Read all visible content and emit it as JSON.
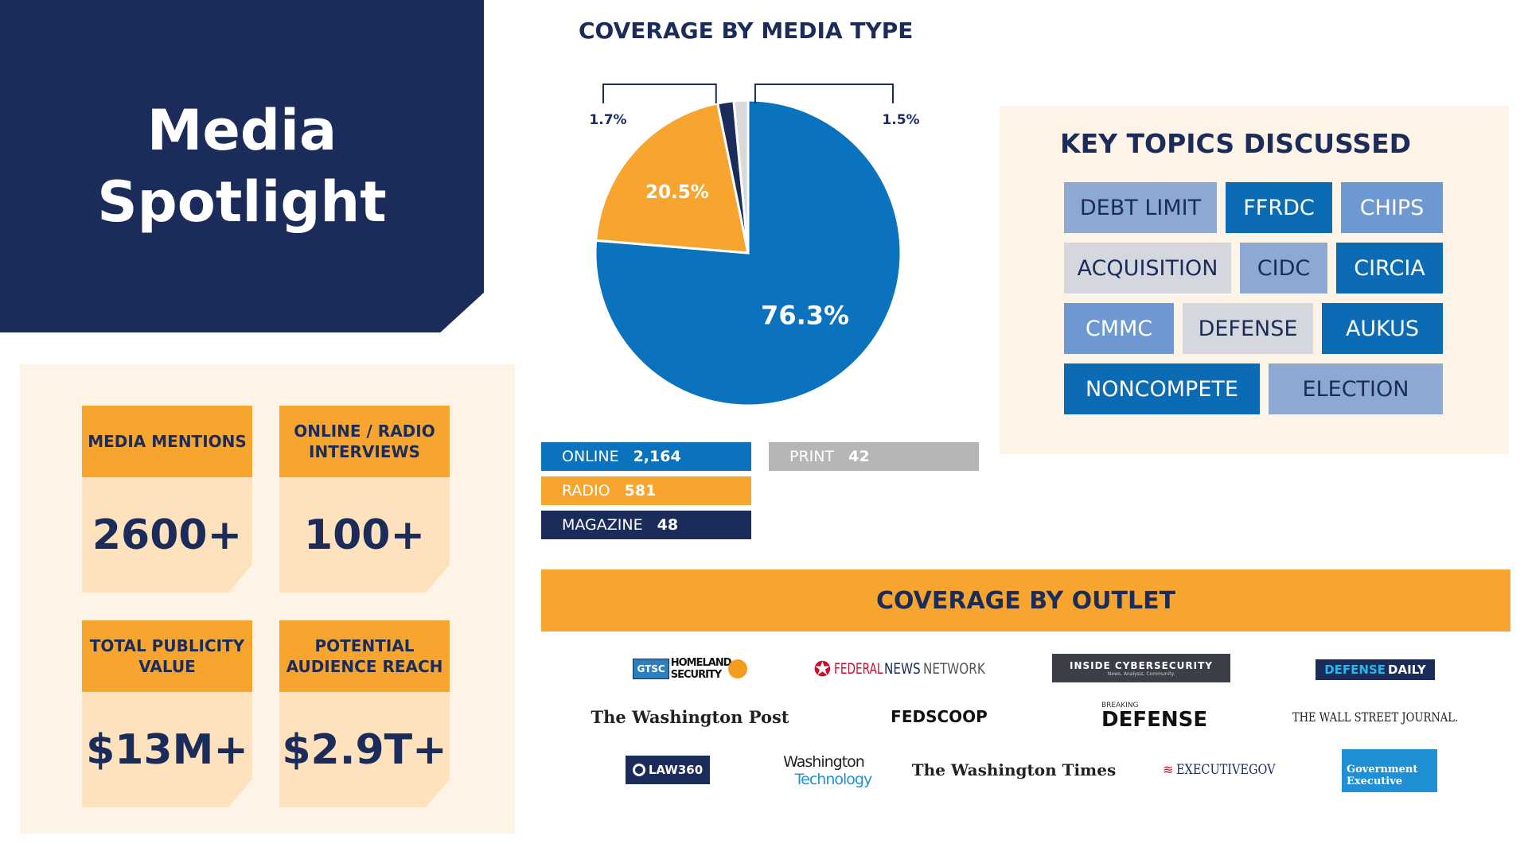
{
  "title": {
    "line1": "Media",
    "line2": "Spotlight"
  },
  "stats": [
    {
      "label": "MEDIA MENTIONS",
      "value": "2600+"
    },
    {
      "label": "ONLINE / RADIO INTERVIEWS",
      "value": "100+"
    },
    {
      "label": "TOTAL PUBLICITY VALUE",
      "value": "$13M+"
    },
    {
      "label": "POTENTIAL AUDIENCE REACH",
      "value": "$2.9T+"
    }
  ],
  "chart_data": {
    "type": "pie",
    "title": "COVERAGE BY MEDIA TYPE",
    "slices": [
      {
        "name": "ONLINE",
        "count": "2,164",
        "percent": 76.3,
        "label": "76.3%",
        "color": "#0b72bd"
      },
      {
        "name": "RADIO",
        "count": "581",
        "percent": 20.5,
        "label": "20.5%",
        "color": "#f7a52e"
      },
      {
        "name": "MAGAZINE",
        "count": "48",
        "percent": 1.7,
        "label": "1.7%",
        "color": "#1b2c5a"
      },
      {
        "name": "PRINT",
        "count": "42",
        "percent": 1.5,
        "label": "1.5%",
        "color": "#d9d9db"
      }
    ]
  },
  "topics": {
    "title": "KEY TOPICS DISCUSSED",
    "items": [
      "DEBT LIMIT",
      "FFRDC",
      "CHIPS",
      "ACQUISITION",
      "CIDC",
      "CIRCIA",
      "CMMC",
      "DEFENSE",
      "AUKUS",
      "NONCOMPETE",
      "ELECTION"
    ]
  },
  "outlets": {
    "title": "COVERAGE BY OUTLET",
    "gtsc": "GTSC",
    "homeland_1": "HOMELAND",
    "homeland_2": "SECURITY",
    "fnn_1": "FEDERAL",
    "fnn_2": "NEWS",
    "fnn_3": "NETWORK",
    "inside_cyber": "INSIDE CYBERSECURITY",
    "inside_cyber_sub": "News. Analysis. Community.",
    "defense_daily_1": "DEFENSE",
    "defense_daily_2": "DAILY",
    "wapo": "The Washington Post",
    "fedscoop": "FEDSCOOP",
    "breaking": "BREAKING",
    "breaking_defense": "DEFENSE",
    "wsj": "THE WALL STREET JOURNAL.",
    "law360": "LAW360",
    "wt_1": "Washington",
    "wt_2": "Technology",
    "washtimes": "The Washington Times",
    "execgov": "EXECUTIVEGOV",
    "govexec_1": "Government",
    "govexec_2": "Executive"
  }
}
